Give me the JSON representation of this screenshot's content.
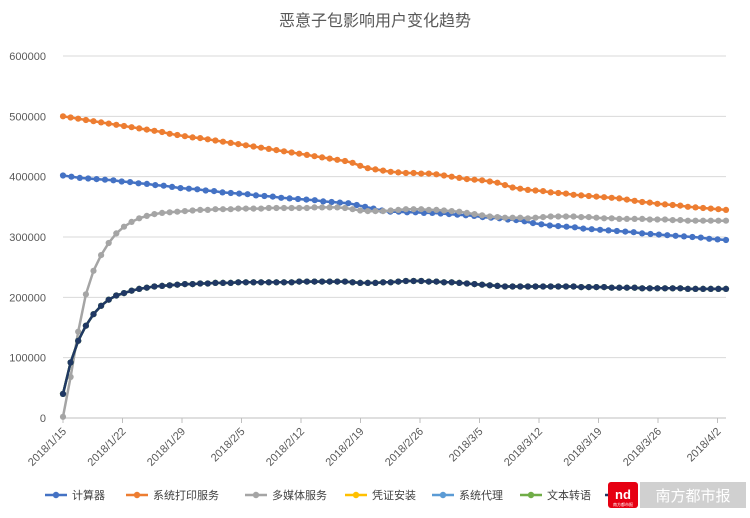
{
  "chart_data": {
    "type": "line",
    "title": "恶意子包影响用户变化趋势",
    "ylim": [
      0,
      600000
    ],
    "yticks": [
      0,
      100000,
      200000,
      300000,
      400000,
      500000,
      600000
    ],
    "yticks_labels": [
      "0",
      "100000",
      "200000",
      "300000",
      "400000",
      "500000",
      "600000"
    ],
    "x_labels": [
      "2018/1/15",
      "2018/1/22",
      "2018/1/29",
      "2018/2/5",
      "2018/2/12",
      "2018/2/19",
      "2018/2/26",
      "2018/3/5",
      "2018/3/12",
      "2018/3/19",
      "2018/3/26",
      "2018/4/2"
    ],
    "x_start": "2018/1/15",
    "x_end": "2018/4/3",
    "grid": true,
    "legend_position": "bottom",
    "series": [
      {
        "name": "计算器",
        "color": "#4472c4",
        "values": [
          402000,
          400000,
          398000,
          397000,
          396000,
          395000,
          394000,
          392000,
          391000,
          389000,
          388000,
          386000,
          385000,
          383000,
          381000,
          380000,
          379000,
          377000,
          376000,
          374000,
          373000,
          372000,
          371000,
          369000,
          368000,
          367000,
          365000,
          364000,
          363000,
          362000,
          361000,
          359000,
          358000,
          357000,
          356000,
          353000,
          350000,
          347000,
          344000,
          342000,
          342000,
          341000,
          341000,
          340000,
          340000,
          339000,
          338000,
          337000,
          336000,
          335000,
          333000,
          332000,
          331000,
          329000,
          328000,
          326000,
          323000,
          321000,
          319000,
          318000,
          317000,
          316000,
          314000,
          313000,
          312000,
          311000,
          310000,
          309000,
          308000,
          306000,
          305000,
          304000,
          303000,
          302000,
          301000,
          300000,
          299000,
          297000,
          296000,
          295000
        ]
      },
      {
        "name": "系统打印服务",
        "color": "#ed7d31",
        "values": [
          500000,
          498000,
          496000,
          494000,
          492000,
          490000,
          488000,
          486000,
          484000,
          482000,
          480000,
          478000,
          476000,
          474000,
          471000,
          469000,
          467000,
          465000,
          464000,
          462000,
          460000,
          458000,
          456000,
          454000,
          452000,
          450000,
          448000,
          446000,
          444000,
          442000,
          440000,
          438000,
          436000,
          434000,
          432000,
          430000,
          428000,
          426000,
          423000,
          418000,
          414000,
          412000,
          410000,
          408000,
          407000,
          406000,
          406000,
          405000,
          405000,
          404000,
          402000,
          400000,
          398000,
          396000,
          395000,
          394000,
          392000,
          390000,
          386000,
          382000,
          380000,
          378000,
          377000,
          376000,
          374000,
          373000,
          372000,
          370000,
          369000,
          368000,
          367000,
          366000,
          365000,
          364000,
          362000,
          360000,
          358000,
          357000,
          355000,
          354000,
          353000,
          352000,
          350000,
          349000,
          348000,
          347000,
          346000,
          345000
        ]
      },
      {
        "name": "多媒体服务",
        "color": "#a5a5a5",
        "values": [
          2000,
          68000,
          143000,
          205000,
          244000,
          270000,
          290000,
          306000,
          317000,
          325000,
          331000,
          335000,
          338000,
          340000,
          341000,
          342000,
          343000,
          344000,
          345000,
          345000,
          346000,
          346000,
          346000,
          347000,
          347000,
          347000,
          347000,
          348000,
          348000,
          348000,
          348000,
          348000,
          348000,
          349000,
          349000,
          349000,
          349000,
          348000,
          346000,
          344000,
          343000,
          343000,
          343000,
          344000,
          345000,
          346000,
          346000,
          346000,
          345000,
          345000,
          344000,
          343000,
          342000,
          340000,
          338000,
          336000,
          334000,
          333000,
          332000,
          332000,
          332000,
          331000,
          332000,
          333000,
          334000,
          334000,
          334000,
          334000,
          333000,
          333000,
          332000,
          331000,
          331000,
          330000,
          330000,
          330000,
          330000,
          329000,
          329000,
          329000,
          328000,
          328000,
          327000,
          327000,
          327000,
          327000,
          327000,
          327000
        ]
      },
      {
        "name": "凭证安装",
        "color": "#ffc000",
        "values": [
          40000,
          92000,
          128000,
          153000,
          172000,
          186000,
          196000,
          203000,
          207000,
          211000,
          214000,
          216000,
          218000,
          219000,
          220000,
          221000,
          222000,
          222000,
          223000,
          223000,
          224000,
          224000,
          224000,
          225000,
          225000,
          225000,
          225000,
          225000,
          225000,
          225000,
          225000,
          226000,
          226000,
          226000,
          226000,
          226000,
          226000,
          226000,
          225000,
          224000,
          224000,
          224000,
          225000,
          225000,
          226000,
          227000,
          227000,
          227000,
          226000,
          226000,
          225000,
          225000,
          224000,
          223000,
          222000,
          221000,
          220000,
          219000,
          218000,
          218000,
          218000,
          218000,
          218000,
          218000,
          218000,
          218000,
          218000,
          218000,
          217000,
          217000,
          217000,
          217000,
          216000,
          216000,
          216000,
          216000,
          215000,
          215000,
          215000,
          215000,
          215000,
          215000,
          214000,
          214000,
          214000,
          214000,
          214000,
          214000
        ]
      },
      {
        "name": "系统代理",
        "color": "#5b9bd5",
        "values": [
          40000,
          92000,
          128000,
          153000,
          172000,
          186000,
          196000,
          203000,
          207000,
          211000,
          214000,
          216000,
          218000,
          219000,
          220000,
          221000,
          222000,
          222000,
          223000,
          223000,
          224000,
          224000,
          224000,
          225000,
          225000,
          225000,
          225000,
          225000,
          225000,
          225000,
          225000,
          226000,
          226000,
          226000,
          226000,
          226000,
          226000,
          226000,
          225000,
          224000,
          224000,
          224000,
          225000,
          225000,
          226000,
          227000,
          227000,
          227000,
          226000,
          226000,
          225000,
          225000,
          224000,
          223000,
          222000,
          221000,
          220000,
          219000,
          218000,
          218000,
          218000,
          218000,
          218000,
          218000,
          218000,
          218000,
          218000,
          218000,
          217000,
          217000,
          217000,
          217000,
          216000,
          216000,
          216000,
          216000,
          215000,
          215000,
          215000,
          215000,
          215000,
          215000,
          214000,
          214000,
          214000,
          214000,
          214000,
          214000
        ]
      },
      {
        "name": "文本转语",
        "color": "#70ad47",
        "values": [
          40000,
          92000,
          128000,
          153000,
          172000,
          186000,
          196000,
          203000,
          207000,
          211000,
          214000,
          216000,
          218000,
          219000,
          220000,
          221000,
          222000,
          222000,
          223000,
          223000,
          224000,
          224000,
          224000,
          225000,
          225000,
          225000,
          225000,
          225000,
          225000,
          225000,
          225000,
          226000,
          226000,
          226000,
          226000,
          226000,
          226000,
          226000,
          225000,
          224000,
          224000,
          224000,
          225000,
          225000,
          226000,
          227000,
          227000,
          227000,
          226000,
          226000,
          225000,
          225000,
          224000,
          223000,
          222000,
          221000,
          220000,
          219000,
          218000,
          218000,
          218000,
          218000,
          218000,
          218000,
          218000,
          218000,
          218000,
          218000,
          217000,
          217000,
          217000,
          217000,
          216000,
          216000,
          216000,
          216000,
          215000,
          215000,
          215000,
          215000,
          215000,
          215000,
          214000,
          214000,
          214000,
          214000,
          214000,
          214000
        ]
      },
      {
        "name": "",
        "color": "#203864",
        "values": [
          40000,
          92000,
          128000,
          153000,
          172000,
          186000,
          196000,
          203000,
          207000,
          211000,
          214000,
          216000,
          218000,
          219000,
          220000,
          221000,
          222000,
          222000,
          223000,
          223000,
          224000,
          224000,
          224000,
          225000,
          225000,
          225000,
          225000,
          225000,
          225000,
          225000,
          225000,
          226000,
          226000,
          226000,
          226000,
          226000,
          226000,
          226000,
          225000,
          224000,
          224000,
          224000,
          225000,
          225000,
          226000,
          227000,
          227000,
          227000,
          226000,
          226000,
          225000,
          225000,
          224000,
          223000,
          222000,
          221000,
          220000,
          219000,
          218000,
          218000,
          218000,
          218000,
          218000,
          218000,
          218000,
          218000,
          218000,
          218000,
          217000,
          217000,
          217000,
          217000,
          216000,
          216000,
          216000,
          216000,
          215000,
          215000,
          215000,
          215000,
          215000,
          215000,
          214000,
          214000,
          214000,
          214000,
          214000,
          214000
        ]
      }
    ]
  },
  "watermark": {
    "logo_text": "nd",
    "logo_subtext": "南方都市报",
    "text": "南方都市报",
    "color": "#e60012"
  }
}
